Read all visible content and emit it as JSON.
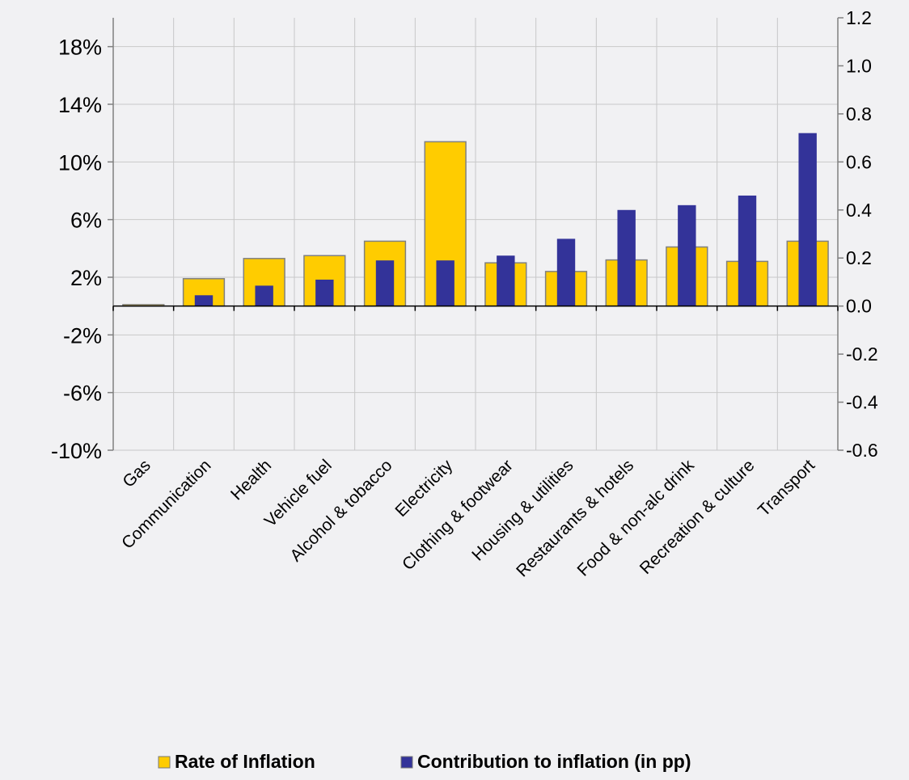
{
  "chart_data": {
    "type": "bar",
    "categories": [
      "Gas",
      "Communication",
      "Health",
      "Vehicle fuel",
      "Alcohol & tobacco",
      "Electricity",
      "Clothing & footwear",
      "Housing & utilities",
      "Restaurants & hotels",
      "Food & non-alc drink",
      "Recreation & culture",
      "Transport"
    ],
    "series": [
      {
        "name": "Rate of Inflation",
        "axis": "left",
        "color": "#ffcc00",
        "values": [
          0.1,
          1.9,
          3.3,
          3.5,
          4.5,
          11.4,
          3.0,
          2.4,
          3.2,
          4.1,
          3.1,
          4.5
        ]
      },
      {
        "name": "Contribution to inflation (in pp)",
        "axis": "right",
        "color": "#333399",
        "values": [
          0.0,
          0.045,
          0.085,
          0.11,
          0.19,
          0.19,
          0.21,
          0.28,
          0.4,
          0.42,
          0.46,
          0.72
        ]
      }
    ],
    "y_left": {
      "lim": [
        -10,
        20
      ],
      "ticks": [
        -10,
        -6,
        -2,
        2,
        6,
        10,
        14,
        18
      ],
      "tick_labels": [
        "-10%",
        "-6%",
        "-2%",
        "2%",
        "6%",
        "10%",
        "14%",
        "18%"
      ]
    },
    "y_right": {
      "lim": [
        -0.6,
        1.2
      ],
      "ticks": [
        -0.6,
        -0.4,
        -0.2,
        0.0,
        0.2,
        0.4,
        0.6,
        0.8,
        1.0,
        1.2
      ],
      "tick_labels": [
        "-0.6",
        "-0.4",
        "-0.2",
        "0.0",
        "0.2",
        "0.4",
        "0.6",
        "0.8",
        "1.0",
        "1.2"
      ]
    },
    "grid": true,
    "legend_position": "bottom"
  }
}
